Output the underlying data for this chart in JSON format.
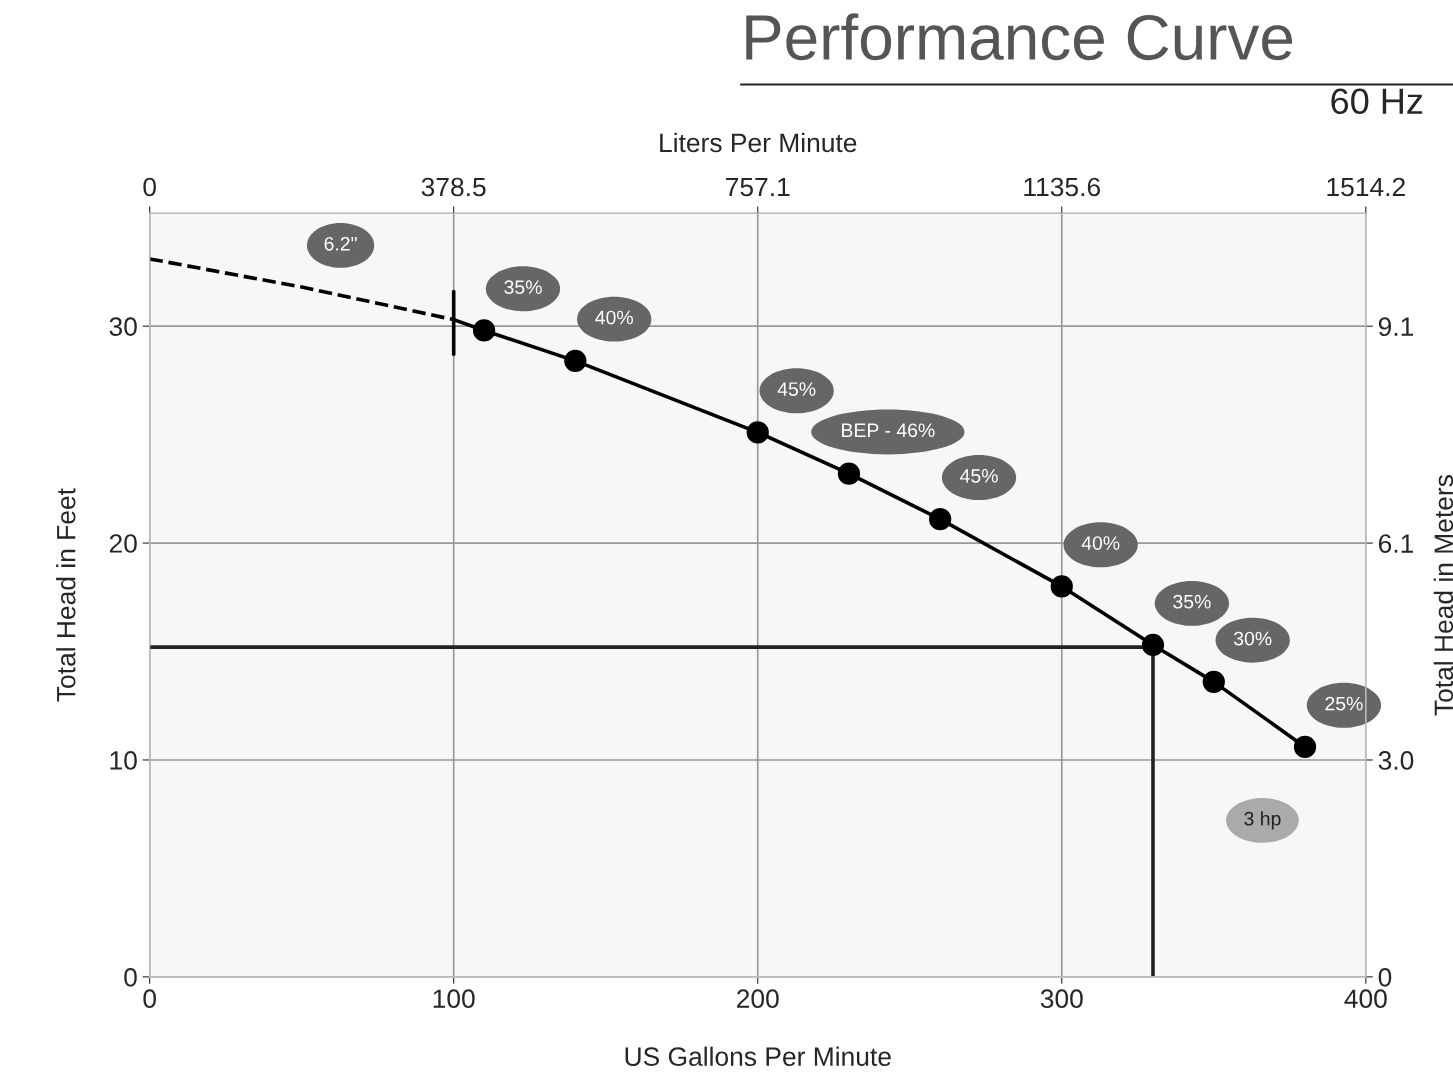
{
  "chart_data": {
    "type": "line",
    "title": "Performance Curve",
    "subtitle": "60 Hz",
    "xlabel": "US Gallons Per Minute",
    "ylabel": "Total Head in Feet",
    "y2label": "Total Head in Meters",
    "x2label": "Liters Per Minute",
    "xlim": [
      0,
      400
    ],
    "xticks": [
      0,
      100,
      200,
      300,
      400
    ],
    "ylim": [
      0,
      35.2
    ],
    "yticks": [
      0,
      10,
      20,
      30
    ],
    "y2lim": [
      0,
      10.73
    ],
    "y2ticks": [
      0,
      {
        "value": 3.048,
        "label": "3.0"
      },
      {
        "value": 6.096,
        "label": "6.1"
      },
      {
        "value": 9.144,
        "label": "9.1"
      }
    ],
    "x2lim": [
      0,
      1514.2
    ],
    "x2ticks": [
      0,
      378.5,
      757.1,
      1135.6,
      1514.2
    ],
    "grid": true,
    "legend": false,
    "series": [
      {
        "line_style": "dashed",
        "color": "#000000",
        "x": [
          0,
          50,
          100
        ],
        "values": [
          33.1,
          31.8,
          30.3
        ]
      },
      {
        "line_style": "solid",
        "color": "#000000",
        "x": [
          100,
          110,
          140,
          200,
          230,
          260,
          300,
          330,
          350,
          380
        ],
        "values": [
          30.3,
          29.8,
          28.4,
          25.1,
          23.2,
          21.1,
          18.0,
          15.3,
          13.6,
          10.6
        ]
      },
      {
        "type": "scatter",
        "marker": "circle",
        "color": "#000000",
        "x": [
          110,
          140,
          200,
          230,
          260,
          300,
          330,
          350,
          380
        ],
        "values": [
          29.8,
          28.4,
          25.1,
          23.2,
          21.1,
          18.0,
          15.3,
          13.6,
          10.6
        ]
      },
      {
        "line_style": "solid",
        "color": "#222222",
        "x": [
          0,
          330,
          330
        ],
        "values": [
          15.2,
          15.2,
          0
        ]
      },
      {
        "line_style": "solid",
        "color": "#000000",
        "x": [
          100,
          100
        ],
        "values": [
          28.7,
          31.6
        ]
      }
    ],
    "annotations": [
      {
        "text": "6.2\"",
        "x": 50,
        "y": 31.8
      },
      {
        "text": "35%",
        "x": 110,
        "y": 29.8
      },
      {
        "text": "40%",
        "x": 140,
        "y": 28.4
      },
      {
        "text": "45%",
        "x": 200,
        "y": 25.1
      },
      {
        "text": "BEP - 46%",
        "x": 230,
        "y": 23.2
      },
      {
        "text": "45%",
        "x": 260,
        "y": 21.1
      },
      {
        "text": "40%",
        "x": 300,
        "y": 18.0
      },
      {
        "text": "35%",
        "x": 330,
        "y": 15.3
      },
      {
        "text": "30%",
        "x": 350,
        "y": 13.6
      },
      {
        "text": "25%",
        "x": 380,
        "y": 10.6
      },
      "3 hp"
    ]
  }
}
